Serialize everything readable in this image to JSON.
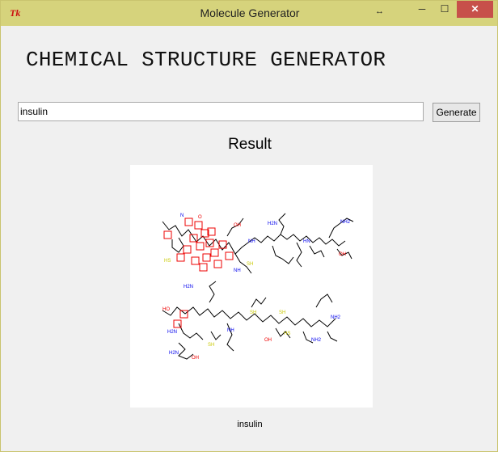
{
  "window": {
    "title": "Molecule Generator",
    "app_icon": "Tk",
    "controls": {
      "minimize": "─",
      "maximize": "☐",
      "close": "✕",
      "resize": "↔"
    }
  },
  "heading": "CHEMICAL STRUCTURE GENERATOR",
  "search": {
    "value": "insulin"
  },
  "generate_button": "Generate",
  "result_label": "Result",
  "molecule": {
    "caption": "insulin",
    "atom_labels": [
      "N",
      "O",
      "OH",
      "NH",
      "NH2",
      "H2N",
      "HN",
      "SH",
      "HS",
      "HO"
    ],
    "colors": {
      "bond": "#000000",
      "nitrogen": "#0000ee",
      "oxygen": "#ee0000",
      "sulfur": "#c8c800",
      "highlight": "#ee0000"
    }
  },
  "colors": {
    "titlebar": "#d6d37c",
    "close_button": "#c7504a",
    "window_bg": "#f0f0f0"
  }
}
